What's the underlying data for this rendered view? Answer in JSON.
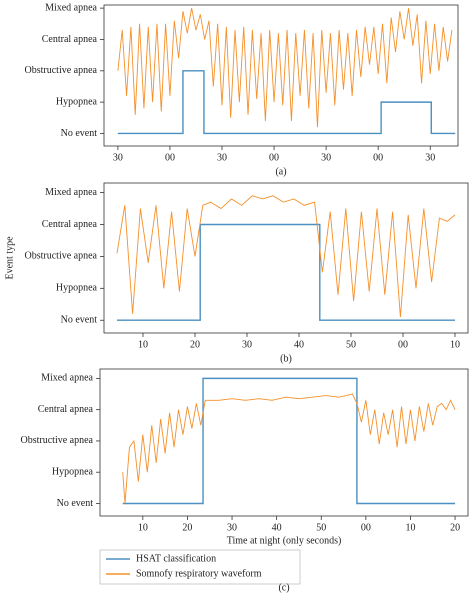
{
  "chart_data": [
    {
      "type": "line",
      "caption": "(a)",
      "xlim": [
        -8,
        196
      ],
      "ylim": [
        -0.4,
        4.1
      ],
      "xticks": [
        {
          "value": 0,
          "label": "30"
        },
        {
          "value": 30,
          "label": "00"
        },
        {
          "value": 60,
          "label": "30"
        },
        {
          "value": 90,
          "label": "00"
        },
        {
          "value": 120,
          "label": "30"
        },
        {
          "value": 150,
          "label": "00"
        },
        {
          "value": 180,
          "label": "30"
        }
      ],
      "yticks": [
        {
          "value": 0,
          "label": "No event"
        },
        {
          "value": 1,
          "label": "Hypopnea"
        },
        {
          "value": 2,
          "label": "Obstructive apnea"
        },
        {
          "value": 3,
          "label": "Central apnea"
        },
        {
          "value": 4,
          "label": "Mixed apnea"
        }
      ],
      "series": [
        {
          "color": "#4a90c0",
          "x": [
            0,
            37.5,
            37.5,
            49.6,
            49.6,
            151.7,
            151.7,
            180.6,
            180.6,
            194.4
          ],
          "values": [
            0,
            0,
            2,
            2,
            0,
            0,
            1,
            1,
            0,
            0
          ]
        },
        {
          "color": "#f5902a",
          "x": [
            0,
            2.5,
            5,
            7.5,
            10,
            12.5,
            15,
            17.5,
            20,
            22.5,
            25,
            27.5,
            30,
            32.5,
            35,
            37.5,
            40,
            42.5,
            45,
            47.5,
            50,
            52.5,
            55,
            57.5,
            60,
            62.5,
            65,
            67.5,
            70,
            72.5,
            75,
            77.5,
            80,
            82.5,
            85,
            87.5,
            90,
            92.5,
            95,
            97.5,
            100,
            102.5,
            105,
            107.5,
            110,
            112.5,
            115,
            117.5,
            120,
            122.5,
            125,
            127.5,
            130,
            132.5,
            135,
            137.5,
            140,
            142.5,
            145,
            147.5,
            150,
            152.5,
            155,
            157.5,
            160,
            162.5,
            165,
            167.5,
            170,
            172.5,
            175,
            177.5,
            180,
            182.5,
            185,
            187.5,
            190,
            192.5
          ],
          "values": [
            2.0,
            3.3,
            1.2,
            3.4,
            0.6,
            3.5,
            0.8,
            3.4,
            1.0,
            3.5,
            0.7,
            3.5,
            1.2,
            3.6,
            2.4,
            3.9,
            3.2,
            4.0,
            3.3,
            3.8,
            3.0,
            3.6,
            1.5,
            3.5,
            0.9,
            3.4,
            0.5,
            3.3,
            1.0,
            3.4,
            0.6,
            3.3,
            1.1,
            3.2,
            0.4,
            3.3,
            1.0,
            3.2,
            0.9,
            3.3,
            0.4,
            3.2,
            1.2,
            3.3,
            0.8,
            3.2,
            0.2,
            3.3,
            1.3,
            3.2,
            0.9,
            3.3,
            1.4,
            3.2,
            1.2,
            3.3,
            1.8,
            3.4,
            2.2,
            3.4,
            1.9,
            3.5,
            1.6,
            3.7,
            2.6,
            3.9,
            3.0,
            4.0,
            2.8,
            3.8,
            1.6,
            3.6,
            1.9,
            3.5,
            2.0,
            3.4,
            2.3,
            3.3
          ]
        }
      ]
    },
    {
      "type": "line",
      "caption": "(b)",
      "ylabel": "Event type",
      "xlim": [
        2.5,
        72.5
      ],
      "ylim": [
        -0.4,
        4.3
      ],
      "xticks": [
        10,
        20,
        30,
        40,
        50,
        {
          "value": 60,
          "label": "00"
        },
        {
          "value": 70,
          "label": "10"
        }
      ],
      "yticks": [
        {
          "value": 0,
          "label": "No event"
        },
        {
          "value": 1,
          "label": "Hypopnea"
        },
        {
          "value": 2,
          "label": "Obstructive apnea"
        },
        {
          "value": 3,
          "label": "Central apnea"
        },
        {
          "value": 4,
          "label": "Mixed apnea"
        }
      ],
      "series": [
        {
          "color": "#4a90c0",
          "x": [
            5,
            21,
            21,
            44,
            44,
            70
          ],
          "values": [
            0,
            0,
            3,
            3,
            0,
            0
          ]
        },
        {
          "color": "#f5902a",
          "x": [
            5,
            6.5,
            8,
            9.5,
            11,
            12.5,
            14,
            15.5,
            17,
            18.5,
            20,
            21.5,
            23,
            25,
            27,
            29,
            31,
            33,
            35,
            37,
            39,
            41,
            43,
            44.5,
            46,
            47.5,
            49,
            50.5,
            52,
            53.5,
            55,
            56.5,
            58,
            59.5,
            61,
            62.5,
            64,
            65.5,
            67,
            68.5,
            70
          ],
          "values": [
            2.1,
            3.6,
            0.2,
            3.5,
            1.8,
            3.6,
            1.0,
            3.4,
            0.9,
            3.5,
            2.0,
            3.6,
            3.7,
            3.5,
            3.8,
            3.6,
            3.9,
            3.8,
            3.9,
            3.7,
            3.8,
            3.6,
            3.7,
            1.5,
            3.4,
            0.8,
            3.5,
            0.6,
            3.4,
            0.9,
            3.5,
            0.8,
            3.4,
            0.1,
            3.3,
            1.0,
            3.5,
            1.2,
            3.2,
            3.1,
            3.3
          ]
        }
      ]
    },
    {
      "type": "line",
      "caption": "(c)",
      "xlabel": "Time at night (only seconds)",
      "xlim": [
        0.4,
        82.9
      ],
      "ylim": [
        -0.4,
        4.3
      ],
      "xticks": [
        10,
        20,
        30,
        40,
        50,
        {
          "value": 60,
          "label": "00"
        },
        {
          "value": 70,
          "label": "10"
        },
        {
          "value": 80,
          "label": "20"
        }
      ],
      "yticks": [
        {
          "value": 0,
          "label": "No event"
        },
        {
          "value": 1,
          "label": "Hypopnea"
        },
        {
          "value": 2,
          "label": "Obstructive apnea"
        },
        {
          "value": 3,
          "label": "Central apnea"
        },
        {
          "value": 4,
          "label": "Mixed apnea"
        }
      ],
      "series": [
        {
          "name": "HSAT classification",
          "color": "#4a90c0",
          "x": [
            5.5,
            23.5,
            23.5,
            58,
            58,
            80
          ],
          "values": [
            0,
            0,
            4,
            4,
            0,
            0
          ]
        },
        {
          "name": "Somnofy respiratory waveform",
          "color": "#f5902a",
          "x": [
            5.5,
            6,
            7,
            8,
            9,
            10,
            11,
            12,
            13,
            14,
            15,
            16,
            17,
            18,
            19,
            20,
            21,
            22,
            23,
            24,
            27,
            30,
            33,
            36,
            39,
            42,
            45,
            48,
            51,
            54,
            57,
            58,
            59,
            60,
            61,
            62,
            63,
            64,
            65,
            66,
            67,
            68,
            69,
            70,
            71,
            72,
            73,
            74,
            75,
            76,
            77,
            78,
            79,
            80
          ],
          "values": [
            1.0,
            0.0,
            1.8,
            2.0,
            0.7,
            2.2,
            1.0,
            2.5,
            1.3,
            2.7,
            1.6,
            2.9,
            1.8,
            3.0,
            2.2,
            3.1,
            2.4,
            3.2,
            2.5,
            3.3,
            3.3,
            3.35,
            3.3,
            3.35,
            3.3,
            3.4,
            3.35,
            3.4,
            3.45,
            3.4,
            3.5,
            3.2,
            2.6,
            3.3,
            2.2,
            3.0,
            1.9,
            2.9,
            2.2,
            3.0,
            1.8,
            3.1,
            1.9,
            3.0,
            2.0,
            3.1,
            2.3,
            3.2,
            2.5,
            3.1,
            3.2,
            3.0,
            3.3,
            3.0
          ]
        }
      ]
    }
  ]
}
